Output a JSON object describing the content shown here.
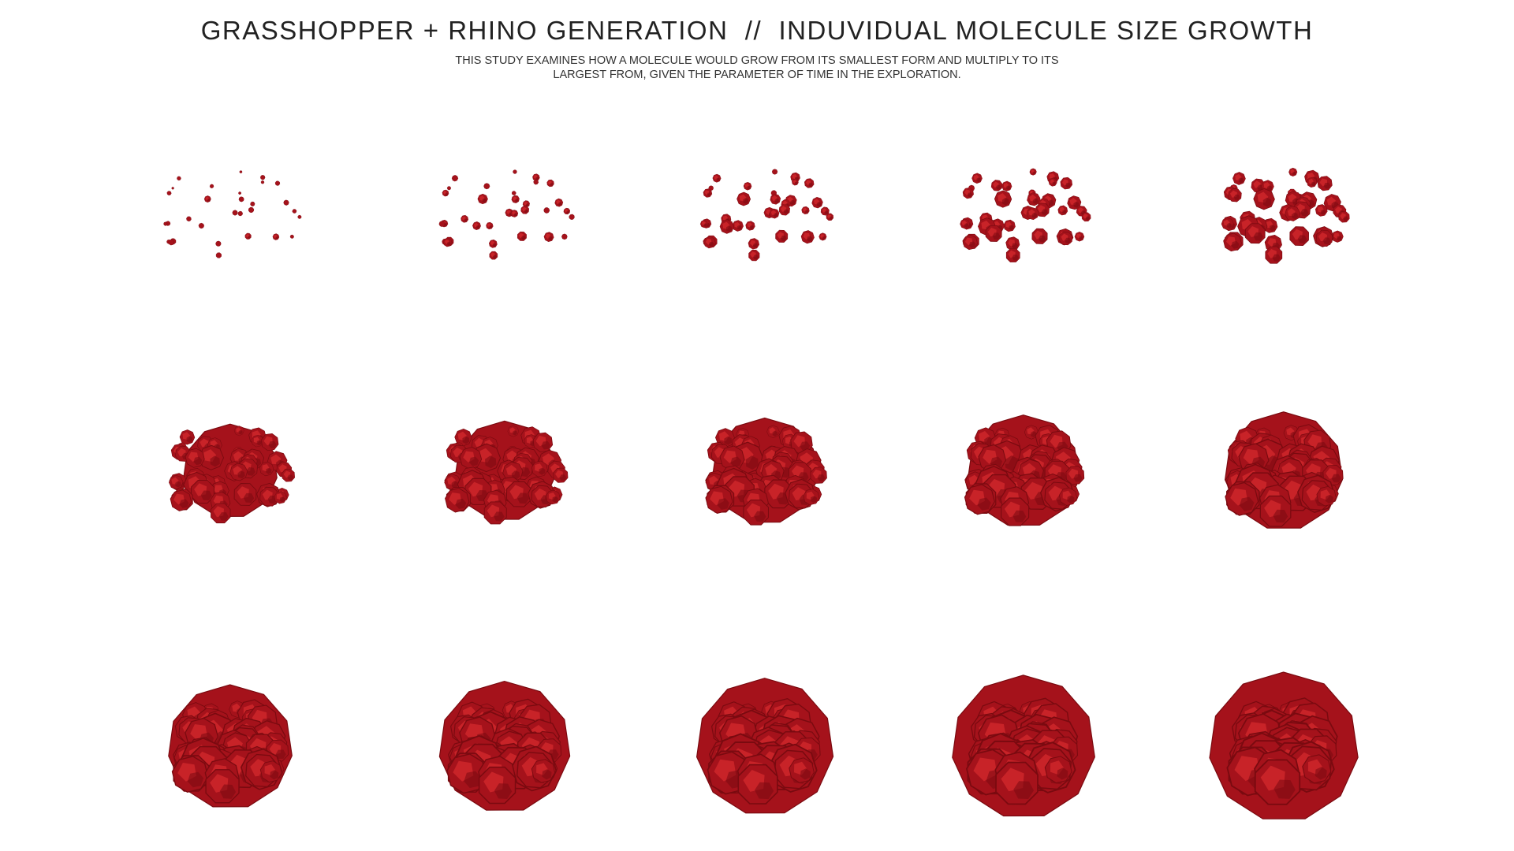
{
  "header": {
    "title": "GRASSHOPPER + RHINO GENERATION  //  INDUVIDUAL MOLECULE SIZE GROWTH",
    "subtitle_line1": "THIS STUDY EXAMINES HOW A MOLECULE WOULD GROW FROM ITS SMALLEST FORM AND MULTIPLY TO ITS",
    "subtitle_line2": "LARGEST FROM, GIVEN THE PARAMETER OF TIME IN THE EXPLORATION."
  },
  "colors": {
    "molecule_dark": "#7a0a10",
    "molecule_mid": "#a5121b",
    "molecule_light": "#d42a2e",
    "background": "#ffffff",
    "text": "#222222"
  },
  "stages": {
    "count": 15,
    "growth": [
      0.0,
      0.07,
      0.14,
      0.21,
      0.29,
      0.36,
      0.43,
      0.5,
      0.57,
      0.64,
      0.71,
      0.79,
      0.86,
      0.93,
      1.0
    ]
  }
}
